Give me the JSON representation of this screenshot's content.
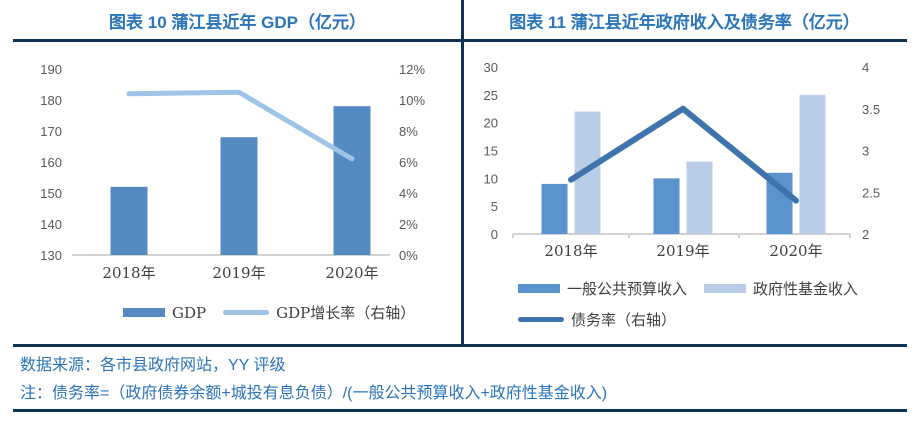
{
  "colors": {
    "navy": "#0e3254",
    "title_blue": "#2a74ba",
    "axis_text_gray": "#595959",
    "axis_line_gray": "#d2d2d2",
    "gdp_bar_blue": "#5589c2",
    "growth_line_lightblue": "#9dc3e6",
    "budget_bar_blue": "#5b93ce",
    "fund_bar_lightblue": "#b9cce8",
    "debt_line_steelblue": "#3e74ab"
  },
  "chart_data": [
    {
      "type": "bar",
      "title": "图表 10 蒲江县近年 GDP（亿元）",
      "categories": [
        "2018年",
        "2019年",
        "2020年"
      ],
      "series": [
        {
          "name": "GDP",
          "type": "bar",
          "axis": "left",
          "color": "#5589c2",
          "values": [
            152,
            168,
            178
          ]
        },
        {
          "name": "GDP增长率（右轴）",
          "type": "line",
          "axis": "right",
          "color": "#9dc3e6",
          "values": [
            10.4,
            10.5,
            6.2
          ]
        }
      ],
      "left_axis": {
        "min": 130,
        "max": 190,
        "step": 10,
        "ticks": [
          "190",
          "180",
          "170",
          "160",
          "150",
          "140",
          "130"
        ]
      },
      "right_axis": {
        "min": 0,
        "max": 12,
        "step": 2,
        "unit": "%",
        "ticks": [
          "12%",
          "10%",
          "8%",
          "6%",
          "4%",
          "2%",
          "0%"
        ]
      },
      "grid": false,
      "legend_position": "bottom"
    },
    {
      "type": "bar",
      "title": "图表 11 蒲江县近年政府收入及债务率（亿元）",
      "categories": [
        "2018年",
        "2019年",
        "2020年"
      ],
      "series": [
        {
          "name": "一般公共预算收入",
          "type": "bar",
          "axis": "left",
          "color": "#5b93ce",
          "values": [
            9,
            10,
            11
          ]
        },
        {
          "name": "政府性基金收入",
          "type": "bar",
          "axis": "left",
          "color": "#b9cce8",
          "values": [
            22,
            13,
            25
          ]
        },
        {
          "name": "债务率（右轴）",
          "type": "line",
          "axis": "right",
          "color": "#3e74ab",
          "values": [
            2.65,
            3.5,
            2.4
          ]
        }
      ],
      "left_axis": {
        "min": 0,
        "max": 30,
        "step": 5,
        "ticks": [
          "30",
          "25",
          "20",
          "15",
          "10",
          "5",
          "0"
        ]
      },
      "right_axis": {
        "min": 2,
        "max": 4,
        "step": 0.5,
        "ticks": [
          "4",
          "3.5",
          "3",
          "2.5",
          "2"
        ]
      },
      "grid": false,
      "legend_position": "bottom"
    }
  ],
  "footer": {
    "source_line": "数据来源：各市县政府网站，YY 评级",
    "note_line": "注：债务率=（政府债券余额+城投有息负债）/(一般公共预算收入+政府性基金收入)"
  }
}
